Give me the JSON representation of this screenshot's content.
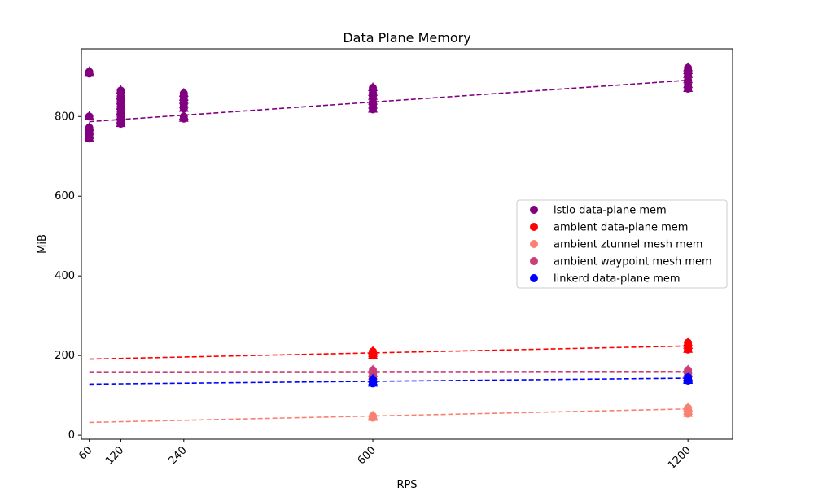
{
  "chart_data": {
    "type": "scatter",
    "title": "Data Plane Memory",
    "xlabel": "RPS",
    "ylabel": "MiB",
    "xlim": [
      45,
      1285
    ],
    "ylim": [
      -10,
      970
    ],
    "xticks": [
      60,
      120,
      240,
      600,
      1200
    ],
    "yticks": [
      0,
      200,
      400,
      600,
      800
    ],
    "grid": false,
    "legend": "center-right",
    "series": [
      {
        "name": "istio data-plane mem",
        "color": "#800080",
        "points": [
          [
            60,
            912
          ],
          [
            60,
            908
          ],
          [
            60,
            800
          ],
          [
            60,
            772
          ],
          [
            60,
            762
          ],
          [
            60,
            752
          ],
          [
            60,
            745
          ],
          [
            120,
            865
          ],
          [
            120,
            850
          ],
          [
            120,
            838
          ],
          [
            120,
            825
          ],
          [
            120,
            812
          ],
          [
            120,
            800
          ],
          [
            120,
            790
          ],
          [
            120,
            782
          ],
          [
            240,
            858
          ],
          [
            240,
            848
          ],
          [
            240,
            840
          ],
          [
            240,
            830
          ],
          [
            240,
            820
          ],
          [
            240,
            800
          ],
          [
            240,
            795
          ],
          [
            600,
            872
          ],
          [
            600,
            860
          ],
          [
            600,
            850
          ],
          [
            600,
            838
          ],
          [
            600,
            828
          ],
          [
            600,
            818
          ],
          [
            1200,
            922
          ],
          [
            1200,
            915
          ],
          [
            1200,
            905
          ],
          [
            1200,
            892
          ],
          [
            1200,
            880
          ],
          [
            1200,
            870
          ]
        ],
        "trend": [
          [
            60,
            787
          ],
          [
            1200,
            891
          ]
        ]
      },
      {
        "name": "ambient data-plane mem",
        "color": "#ff0000",
        "points": [
          [
            600,
            210
          ],
          [
            600,
            205
          ],
          [
            600,
            200
          ],
          [
            1200,
            232
          ],
          [
            1200,
            225
          ],
          [
            1200,
            215
          ]
        ],
        "trend": [
          [
            60,
            191
          ],
          [
            1200,
            224
          ]
        ]
      },
      {
        "name": "ambient ztunnel mesh mem",
        "color": "#fa8072",
        "points": [
          [
            600,
            48
          ],
          [
            600,
            44
          ],
          [
            1200,
            68
          ],
          [
            1200,
            60
          ],
          [
            1200,
            54
          ]
        ],
        "trend": [
          [
            60,
            32
          ],
          [
            1200,
            66
          ]
        ]
      },
      {
        "name": "ambient waypoint mesh mem",
        "color": "#c8407a",
        "points": [
          [
            600,
            163
          ],
          [
            600,
            155
          ],
          [
            600,
            148
          ],
          [
            1200,
            163
          ],
          [
            1200,
            155
          ]
        ],
        "trend": [
          [
            60,
            159
          ],
          [
            1200,
            160
          ]
        ]
      },
      {
        "name": "linkerd data-plane mem",
        "color": "#0000ff",
        "points": [
          [
            600,
            140
          ],
          [
            600,
            134
          ],
          [
            600,
            130
          ],
          [
            1200,
            145
          ],
          [
            1200,
            140
          ],
          [
            1200,
            137
          ]
        ],
        "trend": [
          [
            60,
            128
          ],
          [
            1200,
            143
          ]
        ]
      }
    ]
  }
}
